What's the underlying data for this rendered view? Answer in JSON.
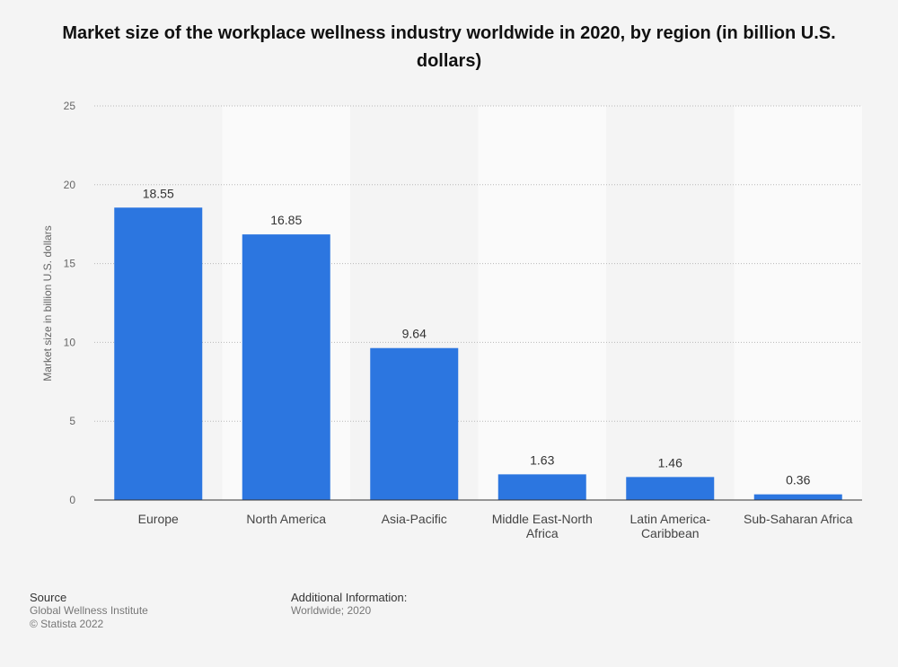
{
  "chart_data": {
    "type": "bar",
    "title": "Market size of the workplace wellness industry worldwide in 2020, by region (in billion U.S. dollars)",
    "categories": [
      "Europe",
      "North America",
      "Asia-Pacific",
      "Middle East-North Africa",
      "Latin America-Caribbean",
      "Sub-Saharan Africa"
    ],
    "category_lines": [
      [
        "Europe"
      ],
      [
        "North America"
      ],
      [
        "Asia-Pacific"
      ],
      [
        "Middle East-North",
        "Africa"
      ],
      [
        "Latin America-",
        "Caribbean"
      ],
      [
        "Sub-Saharan Africa"
      ]
    ],
    "values": [
      18.55,
      16.85,
      9.64,
      1.63,
      1.46,
      0.36
    ],
    "value_labels": [
      "18.55",
      "16.85",
      "9.64",
      "1.63",
      "1.46",
      "0.36"
    ],
    "ylabel": "Market size in billion U.S. dollars",
    "xlabel": "",
    "ylim": [
      0,
      25
    ],
    "yticks": [
      0,
      5,
      10,
      15,
      20,
      25
    ],
    "bar_color": "#2c76e0"
  },
  "footer": {
    "source_heading": "Source",
    "source_name": "Global Wellness Institute",
    "copyright": "© Statista 2022",
    "info_heading": "Additional Information:",
    "info_text": "Worldwide; 2020"
  }
}
